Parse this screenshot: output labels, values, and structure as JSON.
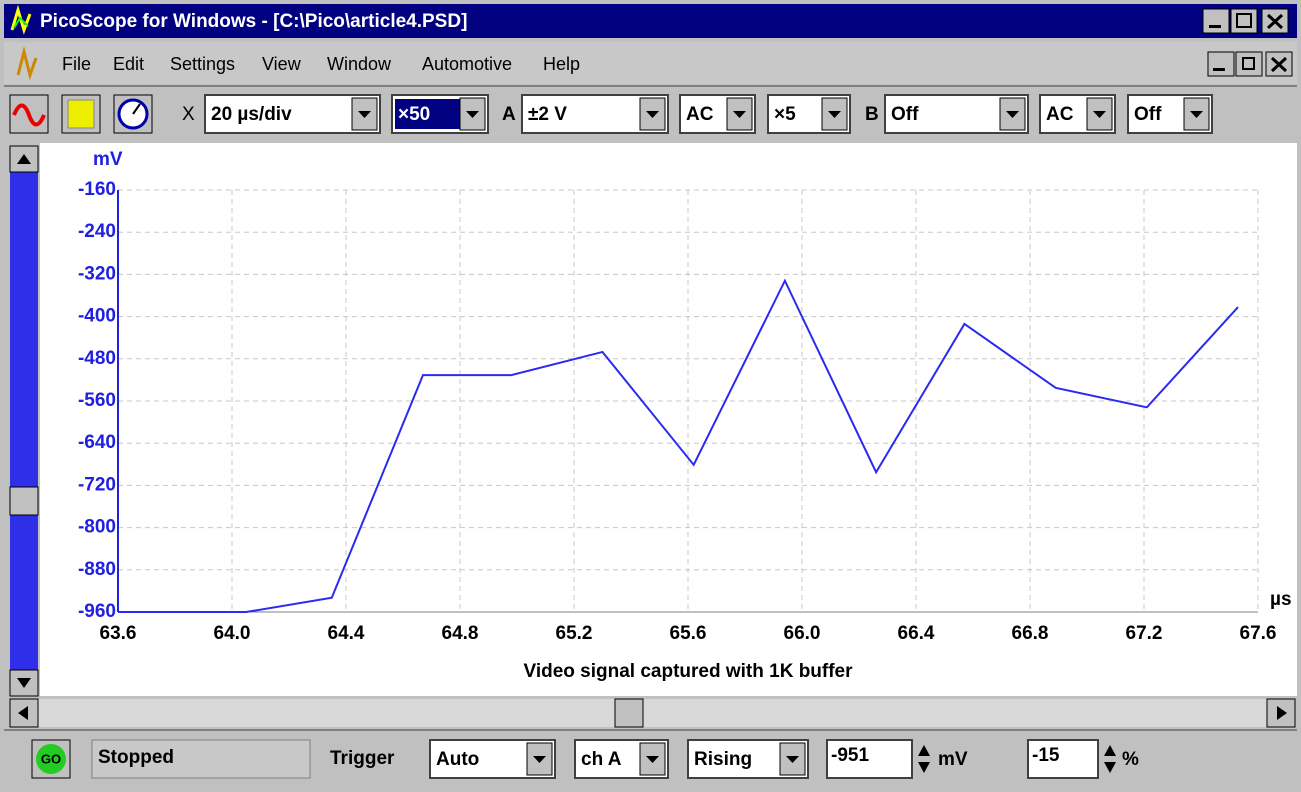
{
  "window": {
    "title": "PicoScope for Windows - [C:\\Pico\\article4.PSD]",
    "menu": [
      "File",
      "Edit",
      "Settings",
      "View",
      "Window",
      "Automotive",
      "Help"
    ]
  },
  "toolbar": {
    "x_label": "X",
    "timebase": "20 µs/div",
    "zoom": "×50",
    "channel_a_label": "A",
    "channel_a_range": "±2 V",
    "channel_a_coupling": "AC",
    "channel_a_gain": "×5",
    "channel_b_label": "B",
    "channel_b_range": "Off",
    "channel_b_coupling": "AC",
    "channel_b_gain": "Off"
  },
  "chart_data": {
    "type": "line",
    "title": "Video signal captured with 1K buffer",
    "y_unit": "mV",
    "x_unit": "µs",
    "x": [
      63.6,
      64.05,
      64.35,
      64.67,
      64.98,
      65.3,
      65.62,
      65.94,
      66.26,
      66.57,
      66.89,
      67.21,
      67.53
    ],
    "series": [
      {
        "name": "ch A",
        "color": "#2a2af0",
        "values": [
          -960,
          -960,
          -933,
          -511,
          -511,
          -467,
          -681,
          -332,
          -695,
          -414,
          -535,
          -572,
          -382
        ]
      }
    ],
    "xlim": [
      63.6,
      67.6
    ],
    "xticks": [
      63.6,
      {
        "value": 64,
        "label": "64.0"
      },
      64.4,
      64.8,
      65.2,
      65.6,
      {
        "value": 66,
        "label": "66.0"
      },
      66.4,
      66.8,
      67.2,
      67.6
    ],
    "ylim": [
      -960,
      -160
    ],
    "yticks": [
      -160,
      -240,
      -320,
      -400,
      -480,
      -560,
      -640,
      -720,
      -800,
      -880,
      -960
    ],
    "grid": true
  },
  "status_bar": {
    "go": "GO",
    "state": "Stopped",
    "trigger_label": "Trigger",
    "trigger_mode": "Auto",
    "trigger_channel": "ch A",
    "trigger_edge": "Rising",
    "trigger_level": "-951",
    "trigger_level_unit": "mV",
    "pre_trigger": "-15",
    "pre_trigger_unit": "%"
  }
}
